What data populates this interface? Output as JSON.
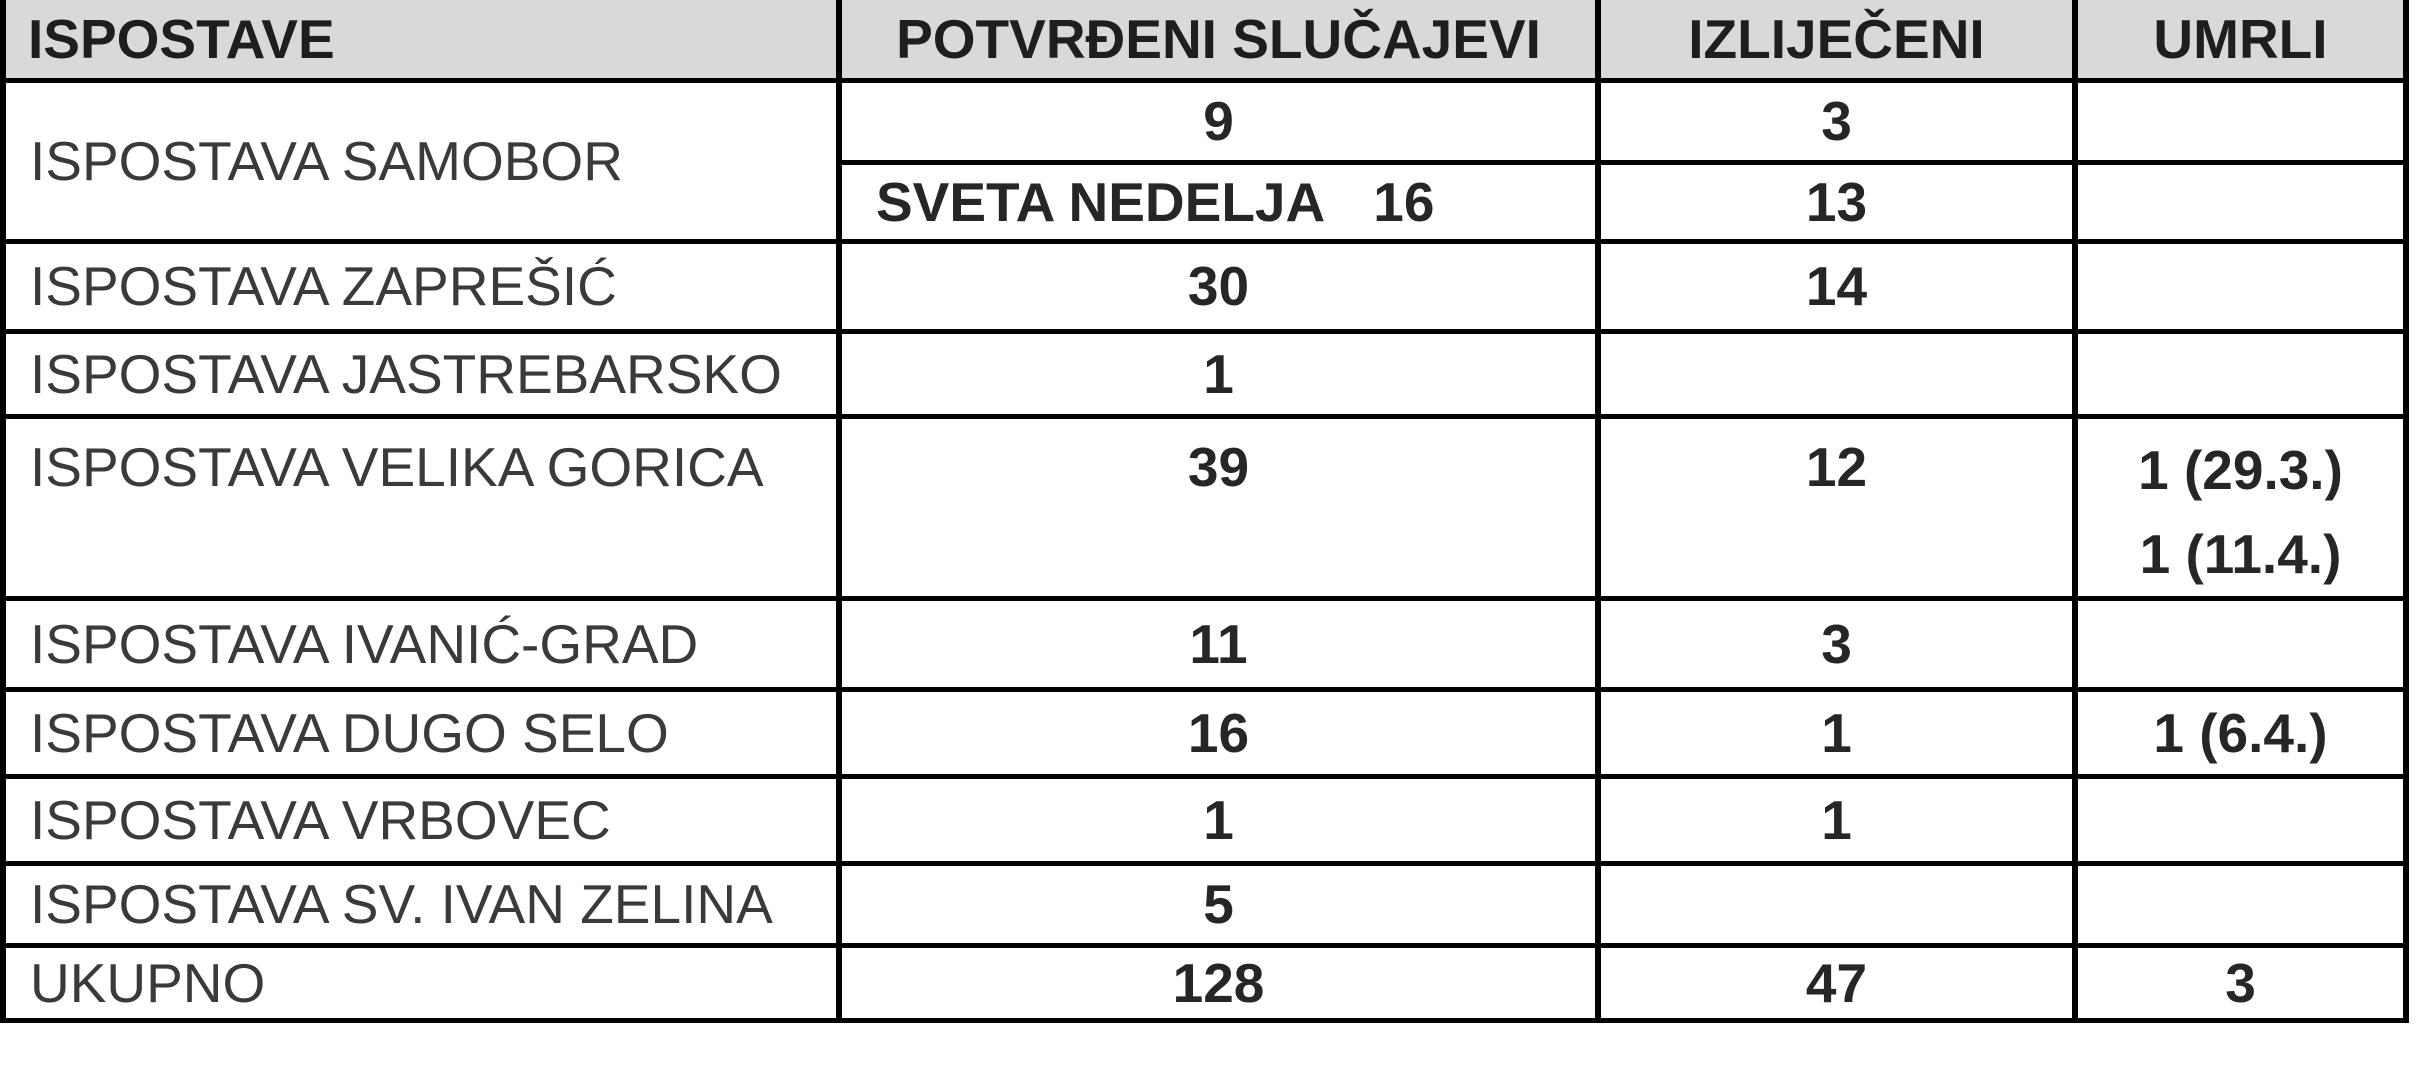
{
  "table": {
    "style": {
      "header_bg": "#d9d9d9",
      "border_color": "#000000"
    },
    "columns": [
      "ISPOSTAVE",
      "POTVRĐENI SLUČAJEVI",
      "IZLIJEČENI",
      "UMRLI"
    ],
    "rows": [
      {
        "name": "ISPOSTAVA SAMOBOR",
        "confirmed": "9",
        "recovered": "3",
        "deaths": ""
      },
      {
        "subname": "SVETA NEDELJA",
        "confirmed": "16",
        "recovered": "13",
        "deaths": ""
      },
      {
        "name": "ISPOSTAVA ZAPREŠIĆ",
        "confirmed": "30",
        "recovered": "14",
        "deaths": ""
      },
      {
        "name": "ISPOSTAVA JASTREBARSKO",
        "confirmed": "1",
        "recovered": "",
        "deaths": ""
      },
      {
        "name": "ISPOSTAVA VELIKA GORICA",
        "confirmed": "39",
        "recovered": "12",
        "deaths_lines": [
          "1 (29.3.)",
          "1 (11.4.)"
        ]
      },
      {
        "name": "ISPOSTAVA IVANIĆ-GRAD",
        "confirmed": "11",
        "recovered": "3",
        "deaths": ""
      },
      {
        "name": "ISPOSTAVA DUGO SELO",
        "confirmed": "16",
        "recovered": "1",
        "deaths": "1 (6.4.)"
      },
      {
        "name": "ISPOSTAVA VRBOVEC",
        "confirmed": "1",
        "recovered": "1",
        "deaths": ""
      },
      {
        "name": "ISPOSTAVA SV. IVAN ZELINA",
        "confirmed": "5",
        "recovered": "",
        "deaths": ""
      },
      {
        "name": "UKUPNO",
        "confirmed": "128",
        "recovered": "47",
        "deaths": "3"
      }
    ]
  }
}
